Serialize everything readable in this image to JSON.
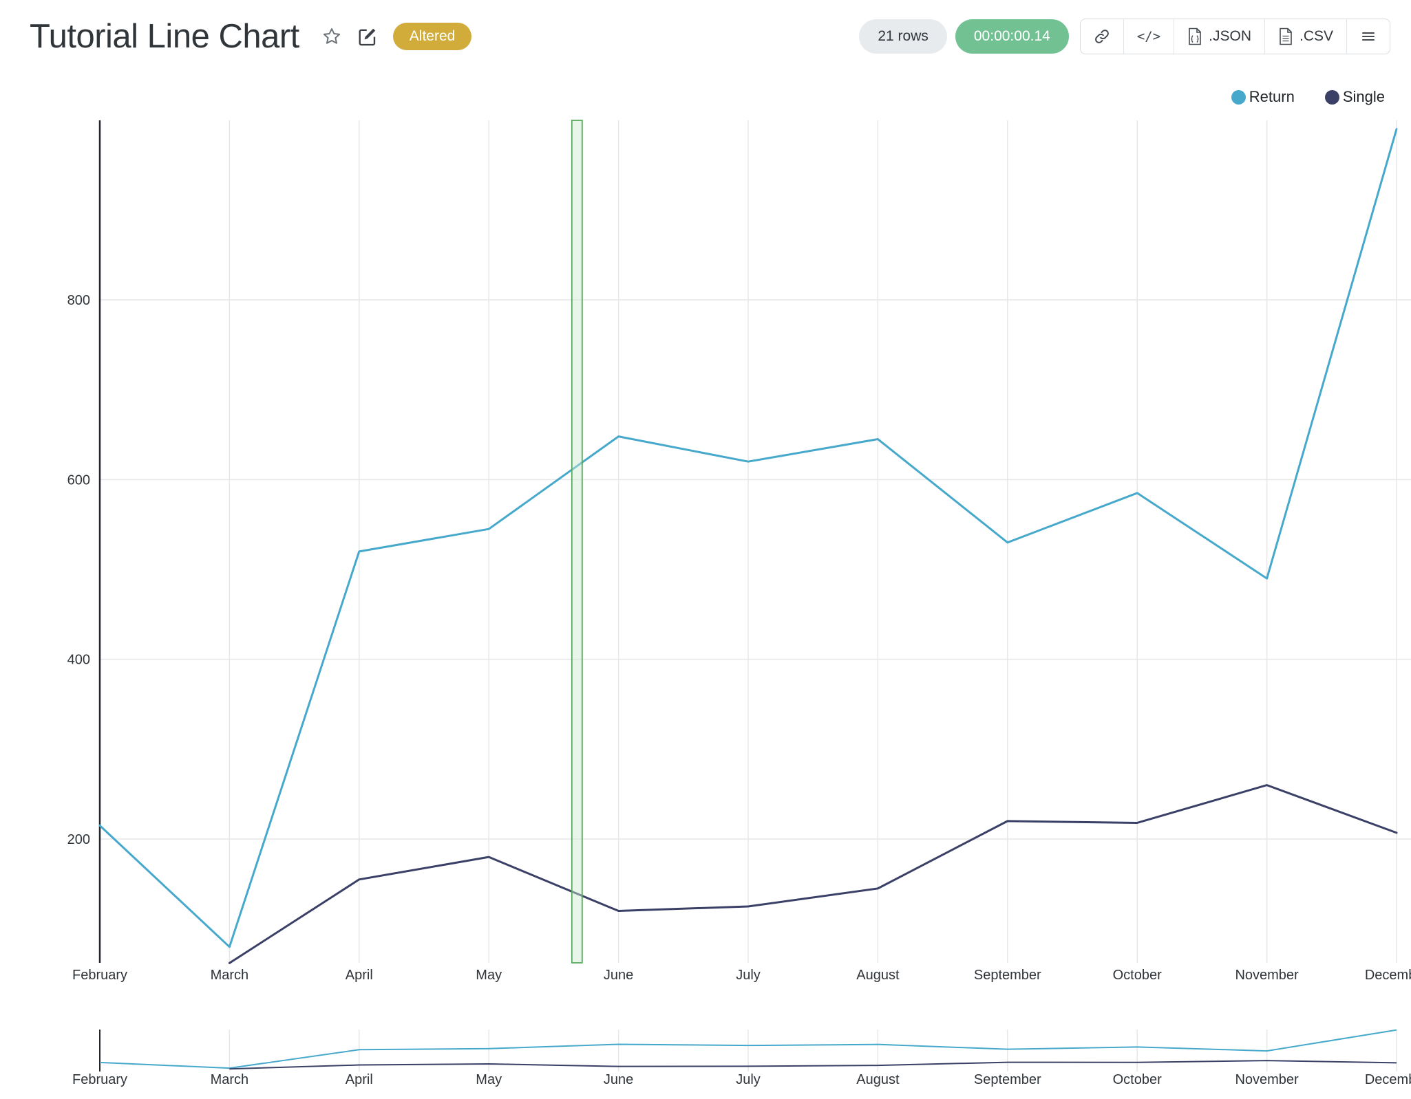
{
  "header": {
    "title": "Tutorial Line Chart",
    "status_badge": "Altered",
    "rows": "21 rows",
    "elapsed": "00:00:00.14",
    "embed_label": "</>",
    "export_json": ".JSON",
    "export_csv": ".CSV"
  },
  "colors": {
    "accent_return": "#46a9cc",
    "accent_single": "#3a4066",
    "badge_bg": "#d2ac3b",
    "timer_bg": "#72c193",
    "rows_bg": "#e8ebee",
    "grid": "#e7e7e7",
    "axis": "#22262a",
    "label": "#2f3439",
    "highlight_fill": "#cdeccf",
    "highlight_stroke": "#57aa5e"
  },
  "chart_data": {
    "type": "line",
    "title": "Tutorial Line Chart",
    "x": [
      "February",
      "March",
      "April",
      "May",
      "June",
      "July",
      "August",
      "September",
      "October",
      "November",
      "December"
    ],
    "series": [
      {
        "name": "Return",
        "color": "#46a9cc",
        "values": [
          215,
          80,
          520,
          545,
          648,
          620,
          645,
          530,
          585,
          490,
          990
        ]
      },
      {
        "name": "Single",
        "color": "#3a4066",
        "values": [
          null,
          62,
          155,
          180,
          120,
          125,
          145,
          220,
          218,
          260,
          207
        ]
      }
    ],
    "yticks": [
      200,
      400,
      600,
      800
    ],
    "ylim": [
      0,
      1000
    ],
    "grid": true,
    "legend_position": "top-right",
    "highlight": {
      "between": [
        3,
        4
      ],
      "fraction": 0.68
    },
    "minimap": {
      "present": true,
      "x_labels_repeated": true
    }
  }
}
